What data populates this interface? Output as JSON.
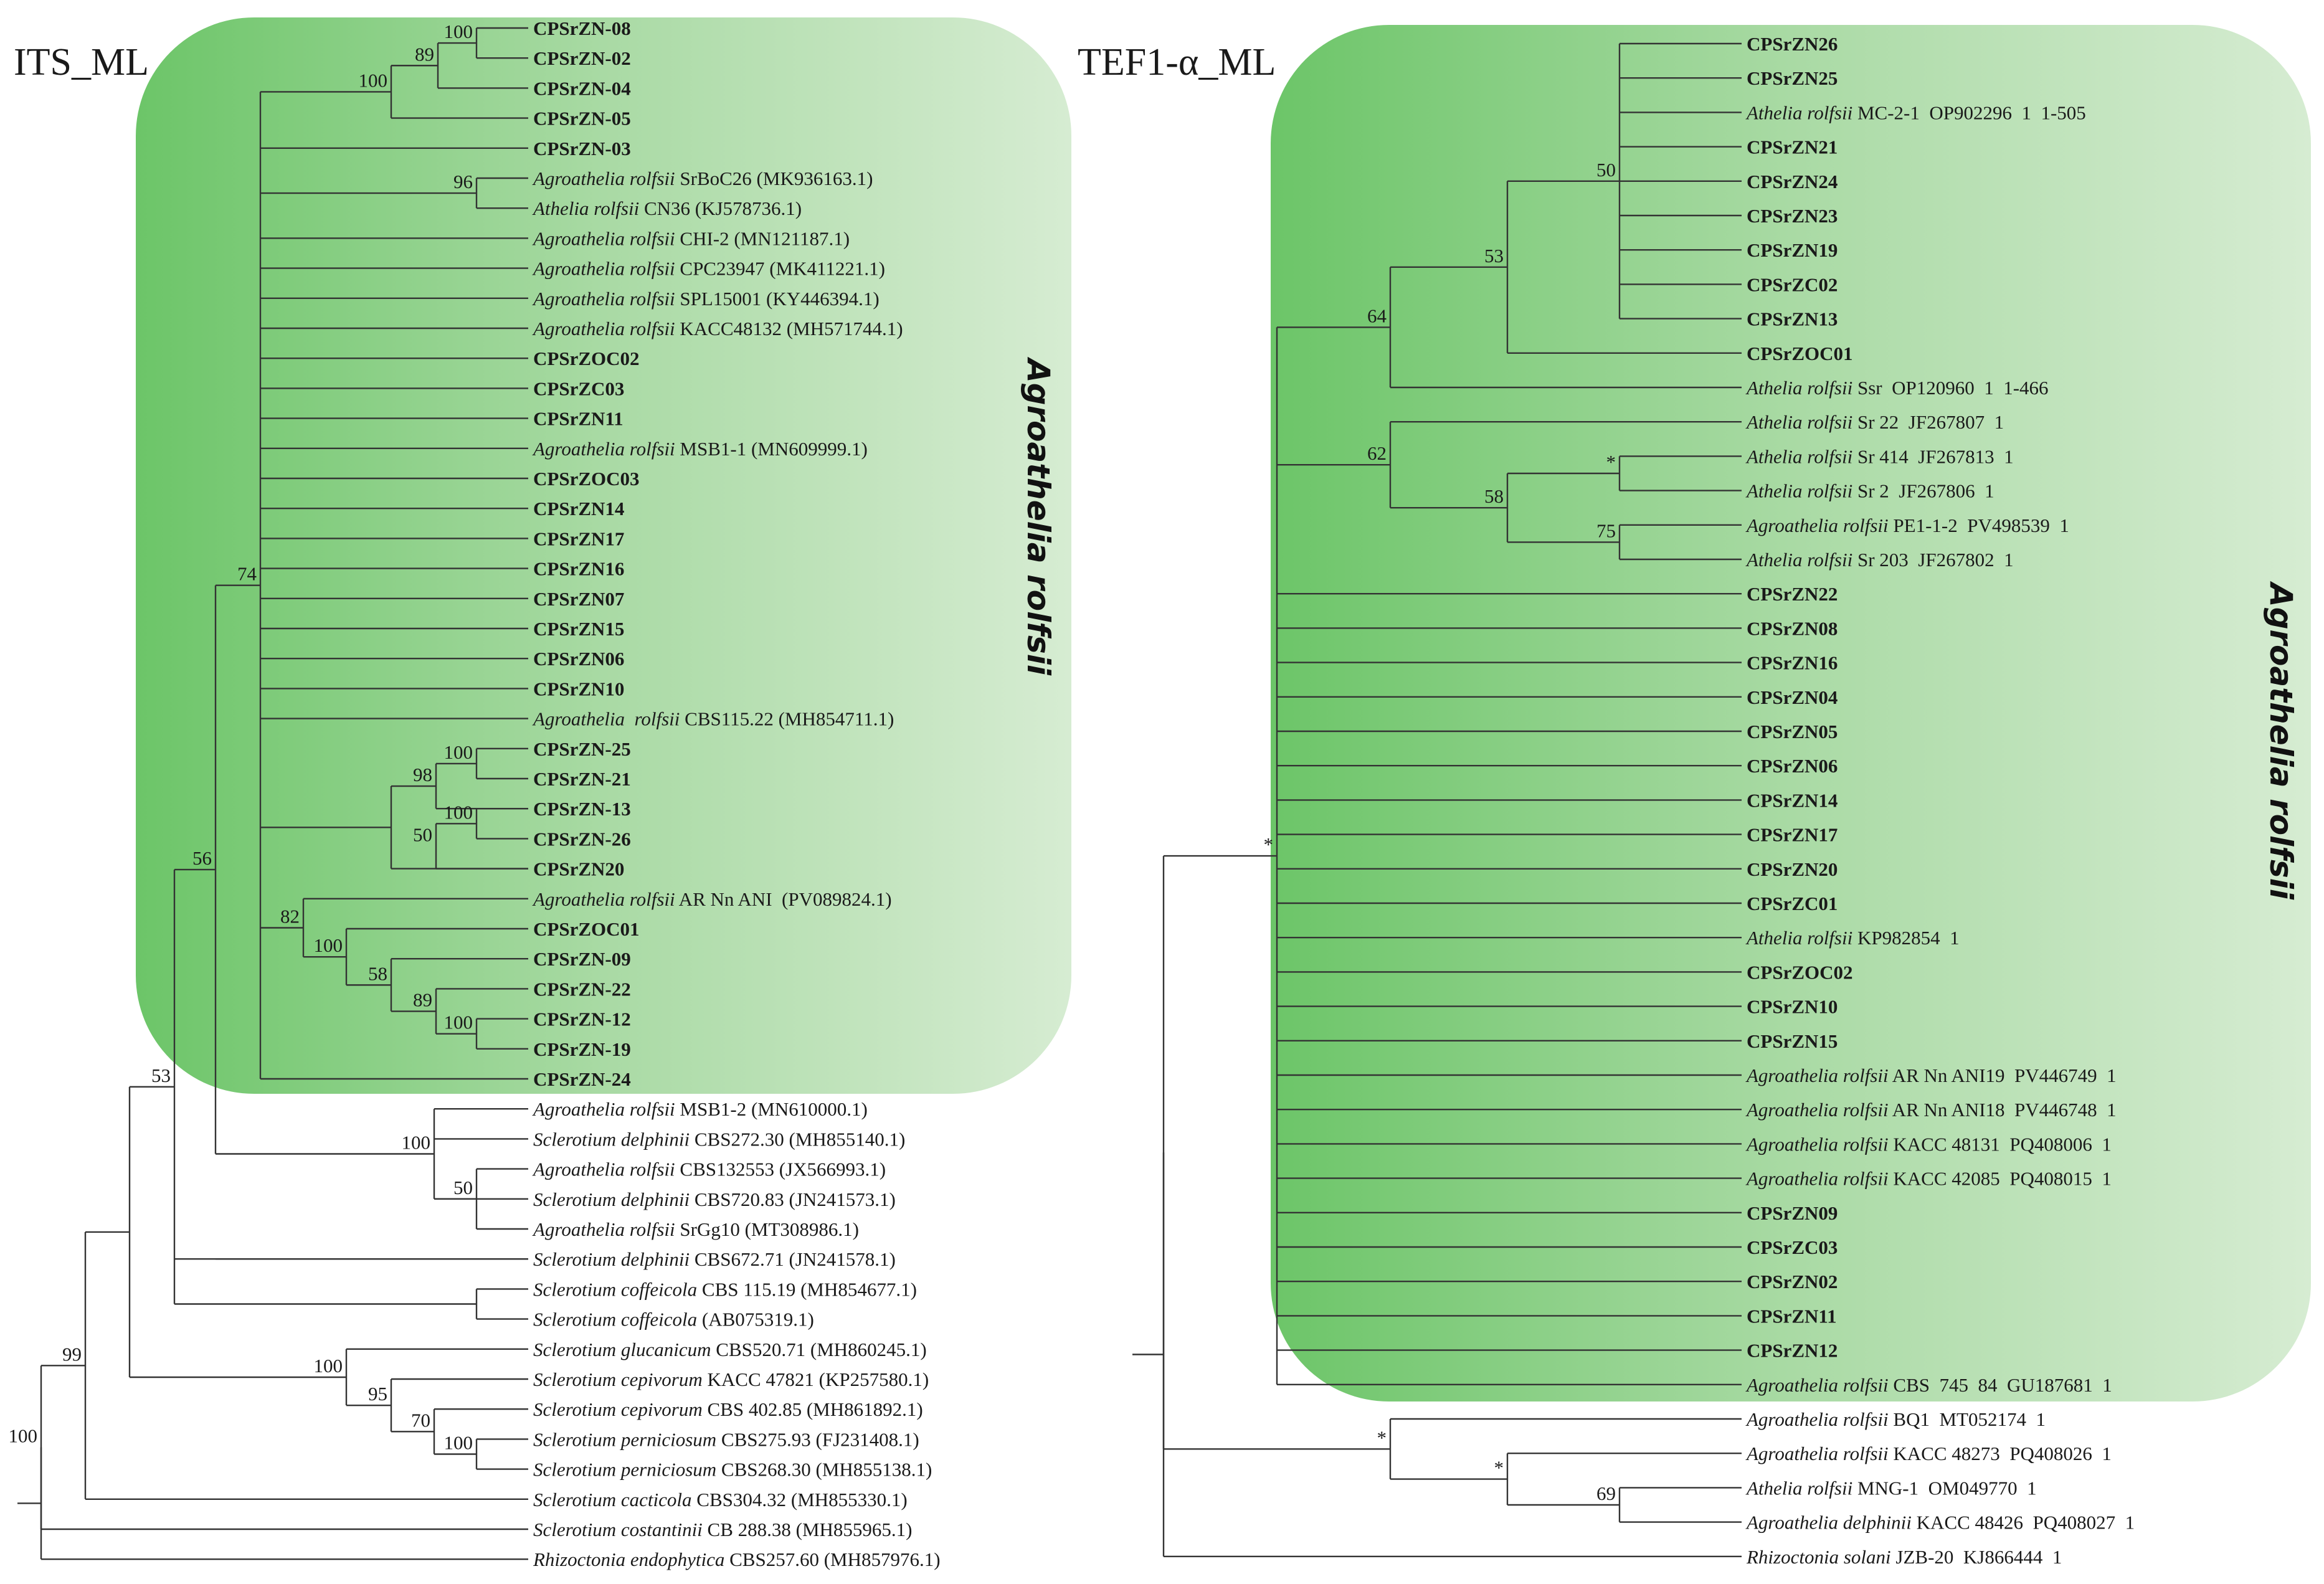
{
  "colors": {
    "clade_fill": "#8fd08a",
    "branch": "#333333"
  },
  "panels": [
    {
      "title": "ITS_ML",
      "clade_label": "Agroathelia rolfsii",
      "leaves": [
        {
          "parts": [
            {
              "t": "CPSrZN-08",
              "s": "b"
            }
          ]
        },
        {
          "parts": [
            {
              "t": "CPSrZN-02",
              "s": "b"
            }
          ]
        },
        {
          "parts": [
            {
              "t": "CPSrZN-04",
              "s": "b"
            }
          ]
        },
        {
          "parts": [
            {
              "t": "CPSrZN-05",
              "s": "b"
            }
          ]
        },
        {
          "parts": [
            {
              "t": "CPSrZN-03",
              "s": "b"
            }
          ]
        },
        {
          "parts": [
            {
              "t": "Agroathelia rolfsii",
              "s": "i"
            },
            {
              "t": " SrBoC26 (MK936163.1)",
              "s": "n"
            }
          ]
        },
        {
          "parts": [
            {
              "t": "Athelia rolfsii",
              "s": "i"
            },
            {
              "t": " CN36 (KJ578736.1)",
              "s": "n"
            }
          ]
        },
        {
          "parts": [
            {
              "t": "Agroathelia rolfsii",
              "s": "i"
            },
            {
              "t": " CHI-2 (MN121187.1)",
              "s": "n"
            }
          ]
        },
        {
          "parts": [
            {
              "t": "Agroathelia rolfsii",
              "s": "i"
            },
            {
              "t": " CPC23947 (MK411221.1)",
              "s": "n"
            }
          ]
        },
        {
          "parts": [
            {
              "t": "Agroathelia rolfsii",
              "s": "i"
            },
            {
              "t": " SPL15001 (KY446394.1)",
              "s": "n"
            }
          ]
        },
        {
          "parts": [
            {
              "t": "Agroathelia rolfsii",
              "s": "i"
            },
            {
              "t": " KACC48132 (MH571744.1)",
              "s": "n"
            }
          ]
        },
        {
          "parts": [
            {
              "t": "CPSrZOC02",
              "s": "b"
            }
          ]
        },
        {
          "parts": [
            {
              "t": "CPSrZC03",
              "s": "b"
            }
          ]
        },
        {
          "parts": [
            {
              "t": "CPSrZN11",
              "s": "b"
            }
          ]
        },
        {
          "parts": [
            {
              "t": "Agroathelia rolfsii",
              "s": "i"
            },
            {
              "t": " MSB1-1 (MN609999.1)",
              "s": "n"
            }
          ]
        },
        {
          "parts": [
            {
              "t": "CPSrZOC03",
              "s": "b"
            }
          ]
        },
        {
          "parts": [
            {
              "t": "CPSrZN14",
              "s": "b"
            }
          ]
        },
        {
          "parts": [
            {
              "t": "CPSrZN17",
              "s": "b"
            }
          ]
        },
        {
          "parts": [
            {
              "t": "CPSrZN16",
              "s": "b"
            }
          ]
        },
        {
          "parts": [
            {
              "t": "CPSrZN07",
              "s": "b"
            }
          ]
        },
        {
          "parts": [
            {
              "t": "CPSrZN15",
              "s": "b"
            }
          ]
        },
        {
          "parts": [
            {
              "t": "CPSrZN06",
              "s": "b"
            }
          ]
        },
        {
          "parts": [
            {
              "t": "CPSrZN10",
              "s": "b"
            }
          ]
        },
        {
          "parts": [
            {
              "t": "Agroathelia  rolfsii",
              "s": "i"
            },
            {
              "t": " CBS115.22 (MH854711.1)",
              "s": "n"
            }
          ]
        },
        {
          "parts": [
            {
              "t": "CPSrZN-25",
              "s": "b"
            }
          ]
        },
        {
          "parts": [
            {
              "t": "CPSrZN-21",
              "s": "b"
            }
          ]
        },
        {
          "parts": [
            {
              "t": "CPSrZN-13",
              "s": "b"
            }
          ]
        },
        {
          "parts": [
            {
              "t": "CPSrZN-26",
              "s": "b"
            }
          ]
        },
        {
          "parts": [
            {
              "t": "CPSrZN20",
              "s": "b"
            }
          ]
        },
        {
          "parts": [
            {
              "t": "Agroathelia rolfsii",
              "s": "i"
            },
            {
              "t": " AR Nn ANI  (PV089824.1)",
              "s": "n"
            }
          ]
        },
        {
          "parts": [
            {
              "t": "CPSrZOC01",
              "s": "b"
            }
          ]
        },
        {
          "parts": [
            {
              "t": "CPSrZN-09",
              "s": "b"
            }
          ]
        },
        {
          "parts": [
            {
              "t": "CPSrZN-22",
              "s": "b"
            }
          ]
        },
        {
          "parts": [
            {
              "t": "CPSrZN-12",
              "s": "b"
            }
          ]
        },
        {
          "parts": [
            {
              "t": "CPSrZN-19",
              "s": "b"
            }
          ]
        },
        {
          "parts": [
            {
              "t": "CPSrZN-24",
              "s": "b"
            }
          ]
        },
        {
          "parts": [
            {
              "t": "Agroathelia rolfsii",
              "s": "i"
            },
            {
              "t": " MSB1-2 (MN610000.1)",
              "s": "n"
            }
          ]
        },
        {
          "parts": [
            {
              "t": "Sclerotium delphinii",
              "s": "i"
            },
            {
              "t": " CBS272.30 (MH855140.1)",
              "s": "n"
            }
          ]
        },
        {
          "parts": [
            {
              "t": "Agroathelia rolfsii",
              "s": "i"
            },
            {
              "t": " CBS132553 (JX566993.1)",
              "s": "n"
            }
          ]
        },
        {
          "parts": [
            {
              "t": "Sclerotium delphinii",
              "s": "i"
            },
            {
              "t": " CBS720.83 (JN241573.1)",
              "s": "n"
            }
          ]
        },
        {
          "parts": [
            {
              "t": "Agroathelia rolfsii",
              "s": "i"
            },
            {
              "t": " SrGg10 (MT308986.1)",
              "s": "n"
            }
          ]
        },
        {
          "parts": [
            {
              "t": "Sclerotium delphinii",
              "s": "i"
            },
            {
              "t": " CBS672.71 (JN241578.1)",
              "s": "n"
            }
          ]
        },
        {
          "parts": [
            {
              "t": "Sclerotium coffeicola",
              "s": "i"
            },
            {
              "t": " CBS 115.19 (MH854677.1)",
              "s": "n"
            }
          ]
        },
        {
          "parts": [
            {
              "t": "Sclerotium coffeicola",
              "s": "i"
            },
            {
              "t": " (AB075319.1)",
              "s": "n"
            }
          ]
        },
        {
          "parts": [
            {
              "t": "Sclerotium glucanicum",
              "s": "i"
            },
            {
              "t": " CBS520.71 (MH860245.1)",
              "s": "n"
            }
          ]
        },
        {
          "parts": [
            {
              "t": "Sclerotium cepivorum",
              "s": "i"
            },
            {
              "t": " KACC 47821 (KP257580.1)",
              "s": "n"
            }
          ]
        },
        {
          "parts": [
            {
              "t": "Sclerotium cepivorum",
              "s": "i"
            },
            {
              "t": " CBS 402.85 (MH861892.1)",
              "s": "n"
            }
          ]
        },
        {
          "parts": [
            {
              "t": "Sclerotium perniciosum",
              "s": "i"
            },
            {
              "t": " CBS275.93 (FJ231408.1)",
              "s": "n"
            }
          ]
        },
        {
          "parts": [
            {
              "t": "Sclerotium perniciosum",
              "s": "i"
            },
            {
              "t": " CBS268.30 (MH855138.1)",
              "s": "n"
            }
          ]
        },
        {
          "parts": [
            {
              "t": "Sclerotium cacticola",
              "s": "i"
            },
            {
              "t": " CBS304.32 (MH855330.1)",
              "s": "n"
            }
          ]
        },
        {
          "parts": [
            {
              "t": "Sclerotium costantinii",
              "s": "i"
            },
            {
              "t": " CB 288.38 (MH855965.1)",
              "s": "n"
            }
          ]
        },
        {
          "parts": [
            {
              "t": "Rhizoctonia endophytica",
              "s": "i"
            },
            {
              "t": " CBS257.60 (MH857976.1)",
              "s": "n"
            }
          ]
        }
      ],
      "support": [
        "100",
        "89",
        "100",
        "96",
        "100",
        "98",
        "100",
        "50",
        "100",
        "58",
        "89",
        "100",
        "82",
        "74",
        "100",
        "50",
        "56",
        "100",
        "70",
        "95",
        "100",
        "53",
        "99",
        "100"
      ]
    },
    {
      "title": "TEF1-α_ML",
      "clade_label": "Agroathelia rolfsii",
      "leaves": [
        {
          "parts": [
            {
              "t": "CPSrZN26",
              "s": "b"
            }
          ]
        },
        {
          "parts": [
            {
              "t": "CPSrZN25",
              "s": "b"
            }
          ]
        },
        {
          "parts": [
            {
              "t": "Athelia rolfsii",
              "s": "i"
            },
            {
              "t": " MC-2-1  OP902296  1  1-505",
              "s": "n"
            }
          ]
        },
        {
          "parts": [
            {
              "t": "CPSrZN21",
              "s": "b"
            }
          ]
        },
        {
          "parts": [
            {
              "t": "CPSrZN24",
              "s": "b"
            }
          ]
        },
        {
          "parts": [
            {
              "t": "CPSrZN23",
              "s": "b"
            }
          ]
        },
        {
          "parts": [
            {
              "t": "CPSrZN19",
              "s": "b"
            }
          ]
        },
        {
          "parts": [
            {
              "t": "CPSrZC02",
              "s": "b"
            }
          ]
        },
        {
          "parts": [
            {
              "t": "CPSrZN13",
              "s": "b"
            }
          ]
        },
        {
          "parts": [
            {
              "t": "CPSrZOC01",
              "s": "b"
            }
          ]
        },
        {
          "parts": [
            {
              "t": "Athelia rolfsii",
              "s": "i"
            },
            {
              "t": " Ssr  OP120960  1  1-466",
              "s": "n"
            }
          ]
        },
        {
          "parts": [
            {
              "t": "Athelia rolfsii",
              "s": "i"
            },
            {
              "t": " Sr 22  JF267807  1",
              "s": "n"
            }
          ]
        },
        {
          "parts": [
            {
              "t": "Athelia rolfsii",
              "s": "i"
            },
            {
              "t": " Sr 414  JF267813  1",
              "s": "n"
            }
          ]
        },
        {
          "parts": [
            {
              "t": "Athelia rolfsii",
              "s": "i"
            },
            {
              "t": " Sr 2  JF267806  1",
              "s": "n"
            }
          ]
        },
        {
          "parts": [
            {
              "t": "Agroathelia rolfsii",
              "s": "i"
            },
            {
              "t": " PE1-1-2  PV498539  1",
              "s": "n"
            }
          ]
        },
        {
          "parts": [
            {
              "t": "Athelia rolfsii",
              "s": "i"
            },
            {
              "t": " Sr 203  JF267802  1",
              "s": "n"
            }
          ]
        },
        {
          "parts": [
            {
              "t": "CPSrZN22",
              "s": "b"
            }
          ]
        },
        {
          "parts": [
            {
              "t": "CPSrZN08",
              "s": "b"
            }
          ]
        },
        {
          "parts": [
            {
              "t": "CPSrZN16",
              "s": "b"
            }
          ]
        },
        {
          "parts": [
            {
              "t": "CPSrZN04",
              "s": "b"
            }
          ]
        },
        {
          "parts": [
            {
              "t": "CPSrZN05",
              "s": "b"
            }
          ]
        },
        {
          "parts": [
            {
              "t": "CPSrZN06",
              "s": "b"
            }
          ]
        },
        {
          "parts": [
            {
              "t": "CPSrZN14",
              "s": "b"
            }
          ]
        },
        {
          "parts": [
            {
              "t": "CPSrZN17",
              "s": "b"
            }
          ]
        },
        {
          "parts": [
            {
              "t": "CPSrZN20",
              "s": "b"
            }
          ]
        },
        {
          "parts": [
            {
              "t": "CPSrZC01",
              "s": "b"
            }
          ]
        },
        {
          "parts": [
            {
              "t": "Athelia rolfsii",
              "s": "i"
            },
            {
              "t": " KP982854  1",
              "s": "n"
            }
          ]
        },
        {
          "parts": [
            {
              "t": "CPSrZOC02",
              "s": "b"
            }
          ]
        },
        {
          "parts": [
            {
              "t": "CPSrZN10",
              "s": "b"
            }
          ]
        },
        {
          "parts": [
            {
              "t": "CPSrZN15",
              "s": "b"
            }
          ]
        },
        {
          "parts": [
            {
              "t": "Agroathelia rolfsii",
              "s": "i"
            },
            {
              "t": " AR Nn ANI19  PV446749  1",
              "s": "n"
            }
          ]
        },
        {
          "parts": [
            {
              "t": "Agroathelia rolfsii",
              "s": "i"
            },
            {
              "t": " AR Nn ANI18  PV446748  1",
              "s": "n"
            }
          ]
        },
        {
          "parts": [
            {
              "t": "Agroathelia rolfsii",
              "s": "i"
            },
            {
              "t": " KACC 48131  PQ408006  1",
              "s": "n"
            }
          ]
        },
        {
          "parts": [
            {
              "t": "Agroathelia rolfsii",
              "s": "i"
            },
            {
              "t": " KACC 42085  PQ408015  1",
              "s": "n"
            }
          ]
        },
        {
          "parts": [
            {
              "t": "CPSrZN09",
              "s": "b"
            }
          ]
        },
        {
          "parts": [
            {
              "t": "CPSrZC03",
              "s": "b"
            }
          ]
        },
        {
          "parts": [
            {
              "t": "CPSrZN02",
              "s": "b"
            }
          ]
        },
        {
          "parts": [
            {
              "t": "CPSrZN11",
              "s": "b"
            }
          ]
        },
        {
          "parts": [
            {
              "t": "CPSrZN12",
              "s": "b"
            }
          ]
        },
        {
          "parts": [
            {
              "t": "Agroathelia rolfsii",
              "s": "i"
            },
            {
              "t": " CBS  745  84  GU187681  1",
              "s": "n"
            }
          ]
        },
        {
          "parts": [
            {
              "t": "Agroathelia rolfsii",
              "s": "i"
            },
            {
              "t": " BQ1  MT052174  1",
              "s": "n"
            }
          ]
        },
        {
          "parts": [
            {
              "t": "Agroathelia rolfsii",
              "s": "i"
            },
            {
              "t": " KACC 48273  PQ408026  1",
              "s": "n"
            }
          ]
        },
        {
          "parts": [
            {
              "t": "Athelia rolfsii",
              "s": "i"
            },
            {
              "t": " MNG-1  OM049770  1",
              "s": "n"
            }
          ]
        },
        {
          "parts": [
            {
              "t": "Agroathelia delphinii",
              "s": "i"
            },
            {
              "t": " KACC 48426  PQ408027  1",
              "s": "n"
            }
          ]
        },
        {
          "parts": [
            {
              "t": "Rhizoctonia solani",
              "s": "i"
            },
            {
              "t": " JZB-20  KJ866444  1",
              "s": "n"
            }
          ]
        }
      ],
      "support": [
        "50",
        "53",
        "64",
        "*",
        "75",
        "58",
        "62",
        "*",
        "69",
        "*",
        "*"
      ]
    }
  ]
}
